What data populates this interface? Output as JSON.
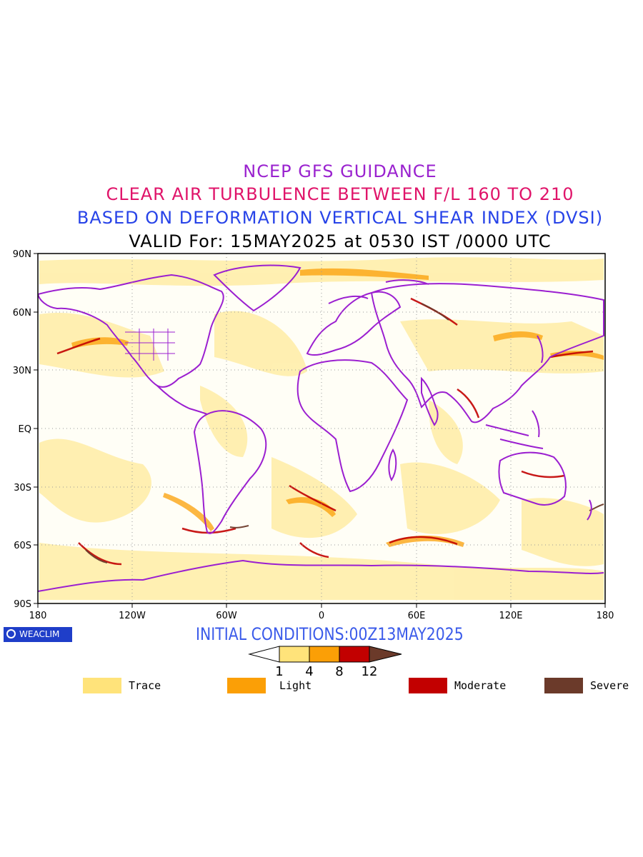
{
  "titles": {
    "line1": "NCEP GFS GUIDANCE",
    "line2": "CLEAR AIR TURBULENCE BETWEEN F/L 160 TO 210",
    "line3": "BASED ON DEFORMATION VERTICAL SHEAR INDEX (DVSI)",
    "line4": "VALID For: 15MAY2025 at 0530 IST /0000 UTC"
  },
  "map": {
    "lat_labels": [
      "90N",
      "60N",
      "30N",
      "EQ",
      "30S",
      "60S",
      "90S"
    ],
    "lon_labels": [
      "180",
      "120W",
      "60W",
      "0",
      "60E",
      "120E",
      "180"
    ],
    "coastline_color": "#9b1fd0",
    "grid_color": "#999999"
  },
  "brand": {
    "text": "WEACLIM",
    "color": "#1f3ec9"
  },
  "initial_conditions": "INITIAL CONDITIONS:00Z13MAY2025",
  "colorbar": {
    "ticks": [
      "1",
      "4",
      "8",
      "12"
    ],
    "colors": [
      "#ffffff",
      "#ffe37a",
      "#fb9f06",
      "#c20000",
      "#6b3a2a"
    ]
  },
  "legend": [
    {
      "label": "Trace",
      "color": "#ffe37a"
    },
    {
      "label": "Light",
      "color": "#fb9f06"
    },
    {
      "label": "Moderate",
      "color": "#c20000"
    },
    {
      "label": "Severe",
      "color": "#6b3a2a"
    }
  ]
}
